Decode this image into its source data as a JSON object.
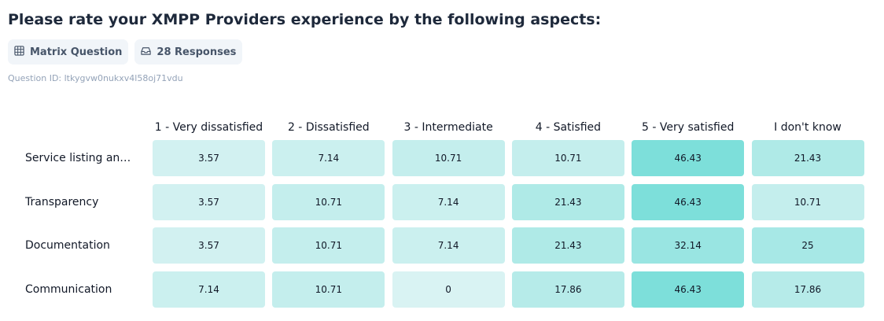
{
  "header": {
    "title": "Please rate your XMPP Providers experience by the following aspects:",
    "badges": [
      {
        "icon": "grid-icon",
        "label": "Matrix Question"
      },
      {
        "icon": "inbox-icon",
        "label": "28 Responses"
      }
    ],
    "question_id": "Question ID: ltkygvw0nukxv4l58oj71vdu"
  },
  "chart_data": {
    "type": "heatmap",
    "columns": [
      "1 - Very dissatisfied",
      "2 - Dissatisfied",
      "3 - Intermediate",
      "4 - Satisfied",
      "5 - Very satisfied",
      "I don't know"
    ],
    "rows": [
      "Service listing an…",
      "Transparency",
      "Documentation",
      "Communication"
    ],
    "values": [
      [
        3.57,
        7.14,
        10.71,
        10.71,
        46.43,
        21.43
      ],
      [
        3.57,
        10.71,
        7.14,
        21.43,
        46.43,
        10.71
      ],
      [
        3.57,
        10.71,
        7.14,
        21.43,
        32.14,
        25
      ],
      [
        7.14,
        10.71,
        0,
        17.86,
        46.43,
        17.86
      ]
    ],
    "color_low": "#d9f3f3",
    "color_high": "#7ddfda"
  }
}
